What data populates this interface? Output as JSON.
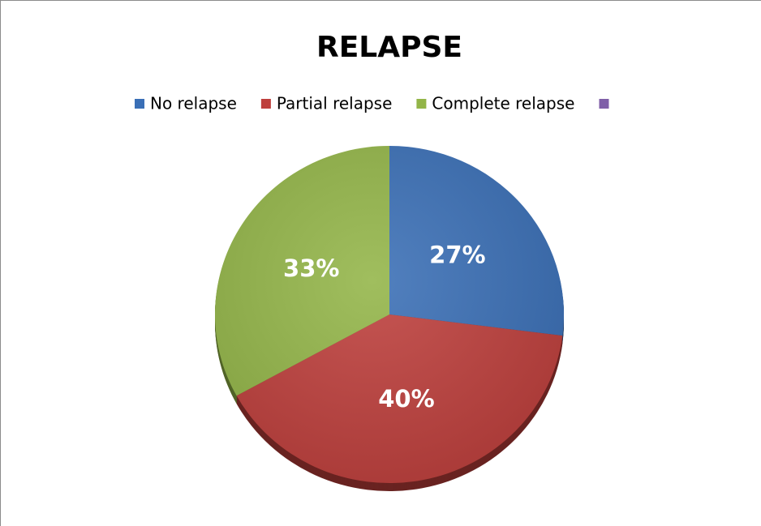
{
  "chart_data": {
    "type": "pie",
    "title": "RELAPSE",
    "categories": [
      "No relapse",
      "Partial relapse",
      "Complete relapse",
      null
    ],
    "values": [
      27,
      40,
      33,
      0
    ],
    "value_labels": [
      "27%",
      "40%",
      "33%",
      null
    ],
    "colors": [
      "#3a6fb6",
      "#be3f3c",
      "#93b548",
      "#7f5fa8"
    ],
    "legend": "top"
  }
}
